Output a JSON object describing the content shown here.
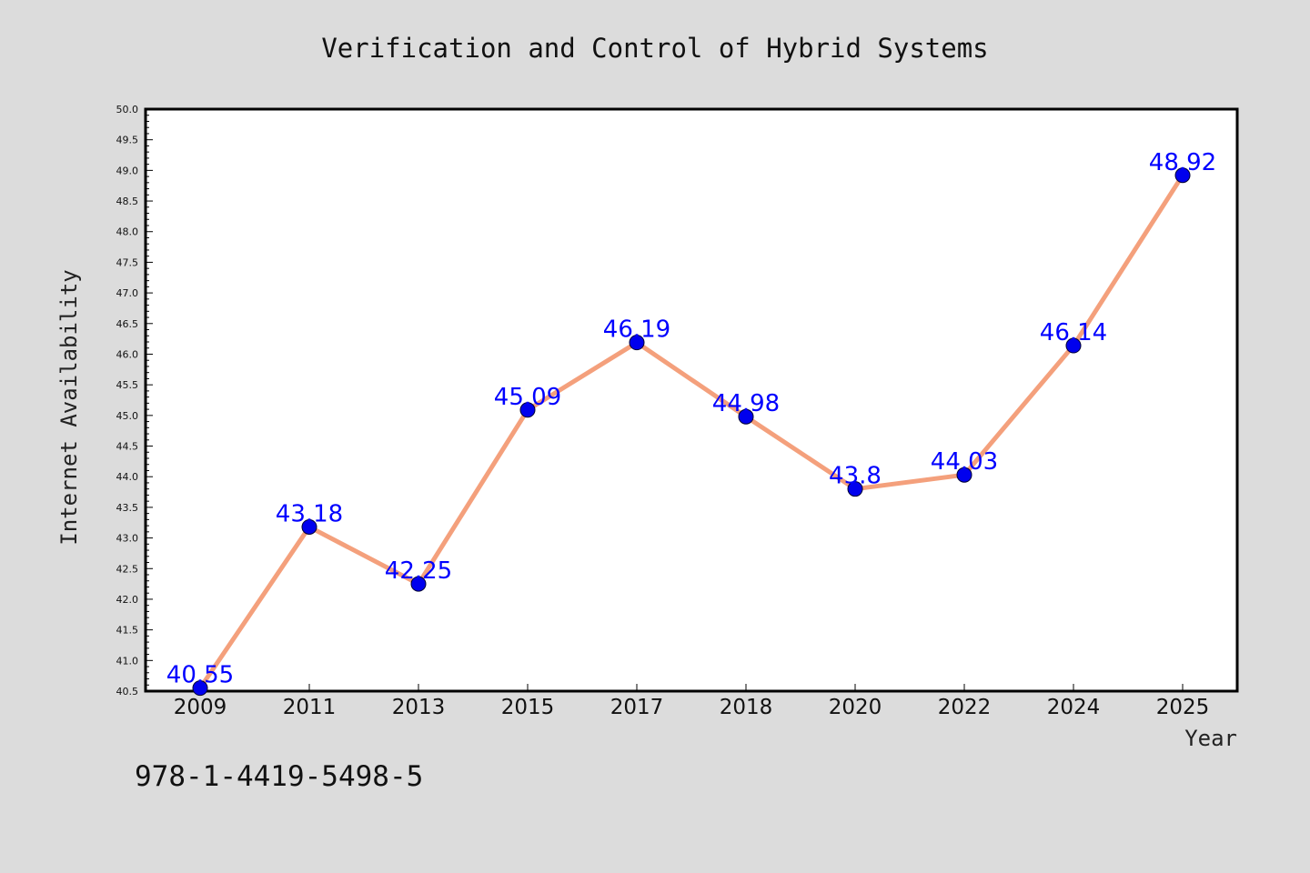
{
  "chart_data": {
    "type": "line",
    "title": "Verification and Control of Hybrid Systems",
    "xlabel": "Year",
    "ylabel": "Internet Availability",
    "categories": [
      "2009",
      "2011",
      "2013",
      "2015",
      "2017",
      "2018",
      "2020",
      "2022",
      "2024",
      "2025"
    ],
    "series": [
      {
        "values": [
          40.55,
          43.18,
          42.25,
          45.09,
          46.19,
          44.98,
          43.8,
          44.03,
          46.14,
          48.92
        ],
        "data_labels": [
          "40.55",
          "43.18",
          "42.25",
          "45.09",
          "46.19",
          "44.98",
          "43.8",
          "44.03",
          "46.14",
          "48.92"
        ]
      }
    ],
    "ylim": [
      40.5,
      50.0
    ],
    "yticks": [
      "40.5",
      "41.0",
      "41.5",
      "42.0",
      "42.5",
      "43.0",
      "43.5",
      "44.0",
      "44.5",
      "45.0",
      "45.5",
      "46.0",
      "46.5",
      "47.0",
      "47.5",
      "48.0",
      "48.5",
      "49.0",
      "49.5",
      "50.0"
    ],
    "grid": false,
    "colors": {
      "line": "#f4a07c",
      "marker": "#0000ee",
      "data_label": "#0000ff",
      "background": "#dcdcdc",
      "plot_area": "#ffffff"
    }
  },
  "footer": {
    "isbn": "978-1-4419-5498-5"
  }
}
